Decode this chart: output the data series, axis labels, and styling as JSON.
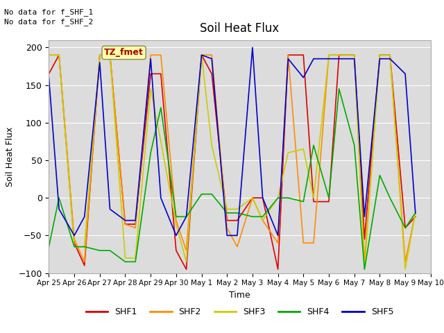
{
  "title": "Soil Heat Flux",
  "xlabel": "Time",
  "ylabel": "Soil Heat Flux",
  "ylim": [
    -100,
    210
  ],
  "yticks": [
    -100,
    -50,
    0,
    50,
    100,
    150,
    200
  ],
  "plot_bg": "#dcdcdc",
  "fig_bg": "#ffffff",
  "text_lines": [
    "No data for f_SHF_1",
    "No data for f_SHF_2"
  ],
  "legend_labels": [
    "SHF1",
    "SHF2",
    "SHF3",
    "SHF4",
    "SHF5"
  ],
  "legend_colors": [
    "#dd0000",
    "#ff8c00",
    "#cccc00",
    "#00aa00",
    "#0000cc"
  ],
  "annotation_text": "TZ_fmet",
  "annotation_color": "#aa0000",
  "annotation_bg": "#ffffaa",
  "x_tick_labels": [
    "Apr 25",
    "Apr 26",
    "Apr 27",
    "Apr 28",
    "Apr 29",
    "Apr 30",
    "May 1",
    "May 2",
    "May 3",
    "May 4",
    "May 5",
    "May 6",
    "May 7",
    "May 8",
    "May 9",
    "May 10"
  ],
  "n_days": 15,
  "SHF1_x": [
    0,
    0.4,
    1,
    1.4,
    2,
    2.4,
    3,
    3.4,
    4,
    4.4,
    5,
    5.4,
    6,
    6.4,
    7,
    7.4,
    8,
    8.4,
    9,
    9.4,
    10,
    10.4,
    11,
    11.4,
    12,
    12.4,
    13,
    13.4,
    14,
    14.4
  ],
  "SHF1_y": [
    165,
    190,
    -60,
    -90,
    190,
    190,
    -35,
    -35,
    165,
    165,
    -70,
    -95,
    190,
    165,
    -30,
    -30,
    0,
    0,
    -95,
    190,
    190,
    -5,
    -5,
    190,
    190,
    -55,
    190,
    190,
    -40,
    -25
  ],
  "SHF2_x": [
    0,
    0.4,
    1,
    1.4,
    2,
    2.4,
    3,
    3.4,
    4,
    4.4,
    5,
    5.4,
    6,
    6.4,
    7,
    7.4,
    8,
    8.4,
    9,
    9.4,
    10,
    10.4,
    11,
    11.4,
    12,
    12.4,
    13,
    13.4,
    14,
    14.4
  ],
  "SHF2_y": [
    190,
    190,
    -55,
    -85,
    190,
    190,
    -35,
    -40,
    190,
    190,
    -30,
    -70,
    190,
    190,
    -40,
    -65,
    0,
    -30,
    -60,
    190,
    -60,
    -60,
    190,
    190,
    190,
    -85,
    190,
    190,
    -85,
    -20
  ],
  "SHF3_x": [
    0,
    0.4,
    1,
    1.4,
    2,
    2.4,
    3,
    3.4,
    4,
    4.4,
    5,
    5.4,
    6,
    6.4,
    7,
    7.4,
    8,
    8.4,
    9,
    9.4,
    10,
    10.4,
    11,
    11.4,
    12,
    12.4,
    13,
    13.4,
    14,
    14.4
  ],
  "SHF3_y": [
    190,
    190,
    -65,
    -65,
    190,
    190,
    -80,
    -80,
    145,
    75,
    -35,
    -85,
    190,
    70,
    -15,
    -15,
    0,
    -30,
    0,
    60,
    65,
    0,
    190,
    190,
    190,
    -95,
    190,
    190,
    -95,
    -20
  ],
  "SHF4_x": [
    0,
    0.4,
    1,
    1.4,
    2,
    2.4,
    3,
    3.4,
    4,
    4.4,
    5,
    5.4,
    6,
    6.4,
    7,
    7.4,
    8,
    8.4,
    9,
    9.4,
    10,
    10.4,
    11,
    11.4,
    12,
    12.4,
    13,
    13.4,
    14,
    14.4
  ],
  "SHF4_y": [
    -65,
    0,
    -65,
    -65,
    -70,
    -70,
    -85,
    -85,
    60,
    120,
    -25,
    -25,
    5,
    5,
    -20,
    -20,
    -25,
    -25,
    0,
    0,
    -5,
    70,
    0,
    145,
    70,
    -95,
    30,
    0,
    -40,
    -20
  ],
  "SHF5_x": [
    0,
    0.4,
    1,
    1.4,
    2,
    2.4,
    3,
    3.4,
    4,
    4.4,
    5,
    5.4,
    6,
    6.4,
    7,
    7.4,
    8,
    8.4,
    9,
    9.4,
    10,
    10.4,
    11,
    11.4,
    12,
    12.4,
    13,
    13.4,
    14,
    14.4
  ],
  "SHF5_y": [
    160,
    -15,
    -50,
    -25,
    180,
    -15,
    -30,
    -30,
    185,
    0,
    -50,
    -25,
    190,
    185,
    -50,
    -50,
    200,
    0,
    -50,
    185,
    160,
    185,
    185,
    185,
    185,
    -25,
    185,
    185,
    165,
    -20
  ]
}
